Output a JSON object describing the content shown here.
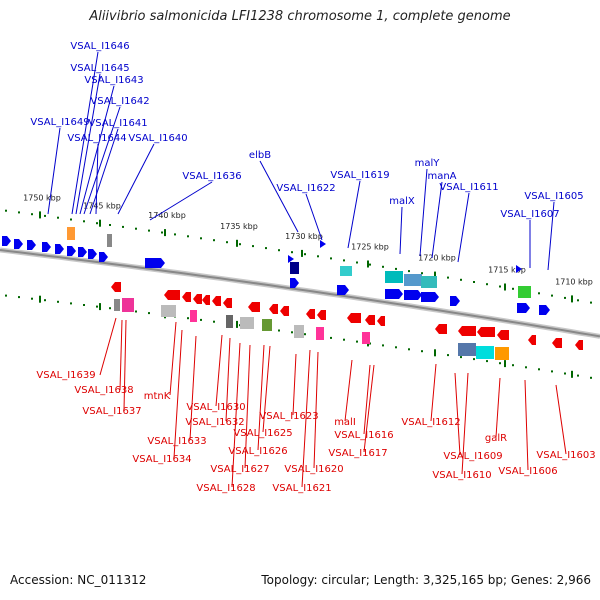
{
  "title": "Aliivibrio salmonicida LFI1238 chromosome 1, complete genome",
  "footer": {
    "accession": "Accession: NC_011312",
    "topology": "Topology: circular; Length: 3,325,165 bp; Genes: 2,966"
  },
  "colors": {
    "forward_label": "#0000cc",
    "reverse_label": "#dd0000",
    "forward_gene": "#0000ee",
    "reverse_gene": "#ee0000",
    "scale_dots": "#006600",
    "backbone": "#888888"
  },
  "scale": {
    "labels": [
      "1750 kbp",
      "1745 kbp",
      "1740 kbp",
      "1735 kbp",
      "1730 kbp",
      "1725 kbp",
      "1720 kbp",
      "1715 kbp",
      "1710 kbp"
    ]
  },
  "forward_labels": [
    "VSAL_I1646",
    "VSAL_I1645",
    "VSAL_I1643",
    "VSAL_I1642",
    "VSAL_I1649",
    "VSAL_I1641",
    "VSAL_I1644",
    "VSAL_I1640",
    "VSAL_I1636",
    "elbB",
    "VSAL_I1622",
    "VSAL_I1619",
    "malY",
    "manA",
    "malX",
    "VSAL_I1611",
    "VSAL_I1605",
    "VSAL_I1607"
  ],
  "reverse_labels": [
    "VSAL_I1639",
    "VSAL_I1638",
    "VSAL_I1637",
    "mtnK",
    "VSAL_I1630",
    "VSAL_I1632",
    "VSAL_I1633",
    "VSAL_I1634",
    "VSAL_I1623",
    "VSAL_I1625",
    "VSAL_I1626",
    "VSAL_I1627",
    "VSAL_I1628",
    "VSAL_I1620",
    "VSAL_I1621",
    "malI",
    "VSAL_I1616",
    "VSAL_I1617",
    "VSAL_I1612",
    "VSAL_I1609",
    "galR",
    "VSAL_I1610",
    "VSAL_I1606",
    "VSAL_I1603"
  ]
}
